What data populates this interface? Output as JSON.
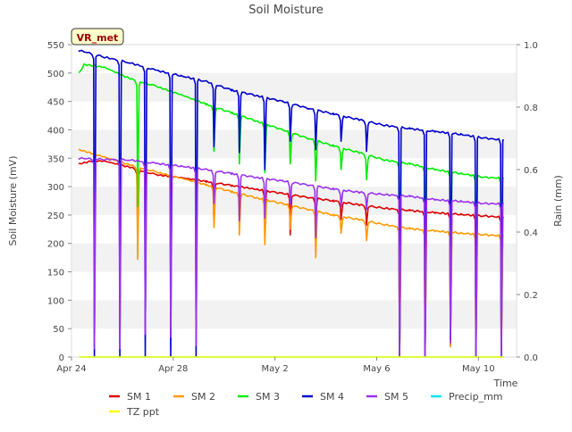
{
  "chart_data": {
    "type": "line",
    "title": "Soil Moisture",
    "station_tag": "VR_met",
    "xlabel": "Time",
    "ylabel_left": "Soil Moisture (mV)",
    "ylabel_right": "Rain (mm)",
    "x_unit": "days since Apr 24",
    "xlim": [
      0,
      17.5
    ],
    "ylim_left": [
      0,
      550
    ],
    "ylim_right": [
      0.0,
      1.0
    ],
    "x_ticks": [
      {
        "x": 0,
        "label": "Apr 24"
      },
      {
        "x": 4,
        "label": "Apr 28"
      },
      {
        "x": 8,
        "label": "May 2"
      },
      {
        "x": 12,
        "label": "May 6"
      },
      {
        "x": 16,
        "label": "May 10"
      }
    ],
    "y_ticks_left": [
      0,
      50,
      100,
      150,
      200,
      250,
      300,
      350,
      400,
      450,
      500,
      550
    ],
    "y_ticks_right": [
      "0.0",
      "0.2",
      "0.4",
      "0.6",
      "0.8",
      "1.0"
    ],
    "grid": "horizontal bands",
    "legend_position": "bottom",
    "cycle_starts": [
      0.3,
      1.3,
      2.3,
      3.3,
      4.3,
      5.3,
      6.3,
      7.3,
      8.3,
      9.3,
      10.3,
      11.3,
      12.3,
      13.3,
      14.3,
      15.3,
      16.3
    ],
    "series": [
      {
        "name": "SM 1",
        "color": "#dd0000",
        "points": [
          [
            0.3,
            340
          ],
          [
            0.8,
            345
          ],
          [
            1.3,
            345
          ],
          [
            2.3,
            334
          ],
          [
            3.3,
            321
          ],
          [
            4.3,
            316
          ],
          [
            5.3,
            309
          ],
          [
            6.3,
            302
          ],
          [
            7.3,
            295
          ],
          [
            8.3,
            288
          ],
          [
            9.3,
            281
          ],
          [
            10.3,
            275
          ],
          [
            11.3,
            268
          ],
          [
            12.3,
            262
          ],
          [
            13.3,
            258
          ],
          [
            14.3,
            254
          ],
          [
            15.3,
            251
          ],
          [
            16.3,
            248
          ],
          [
            17.0,
            246
          ]
        ],
        "dips": [
          [
            2.6,
            220
          ],
          [
            5.6,
            235
          ],
          [
            7.6,
            232
          ],
          [
            8.6,
            215
          ],
          [
            9.6,
            248
          ],
          [
            10.6,
            242
          ],
          [
            11.6,
            232
          ],
          [
            12.9,
            0
          ],
          [
            13.9,
            0
          ],
          [
            14.9,
            20
          ],
          [
            15.9,
            0
          ],
          [
            16.9,
            0
          ]
        ]
      },
      {
        "name": "SM 2",
        "color": "#ff9900",
        "points": [
          [
            0.3,
            365
          ],
          [
            1.3,
            352
          ],
          [
            2.3,
            338
          ],
          [
            3.3,
            326
          ],
          [
            4.3,
            315
          ],
          [
            5.3,
            303
          ],
          [
            6.3,
            291
          ],
          [
            7.3,
            280
          ],
          [
            8.3,
            270
          ],
          [
            9.3,
            260
          ],
          [
            10.3,
            250
          ],
          [
            11.3,
            242
          ],
          [
            12.3,
            233
          ],
          [
            13.3,
            226
          ],
          [
            14.3,
            222
          ],
          [
            15.3,
            218
          ],
          [
            16.3,
            215
          ],
          [
            17.0,
            213
          ]
        ],
        "dips": [
          [
            2.6,
            172
          ],
          [
            5.6,
            228
          ],
          [
            6.6,
            215
          ],
          [
            7.6,
            198
          ],
          [
            8.6,
            225
          ],
          [
            9.6,
            175
          ],
          [
            10.6,
            218
          ],
          [
            11.6,
            205
          ],
          [
            12.9,
            0
          ],
          [
            13.9,
            0
          ],
          [
            14.9,
            18
          ],
          [
            15.9,
            0
          ],
          [
            16.9,
            0
          ]
        ]
      },
      {
        "name": "SM 3",
        "color": "#00ee00",
        "points": [
          [
            0.3,
            500
          ],
          [
            0.5,
            515
          ],
          [
            1.3,
            510
          ],
          [
            2.3,
            490
          ],
          [
            3.3,
            477
          ],
          [
            4.3,
            462
          ],
          [
            5.3,
            445
          ],
          [
            6.3,
            430
          ],
          [
            7.3,
            415
          ],
          [
            8.3,
            400
          ],
          [
            9.3,
            385
          ],
          [
            10.3,
            372
          ],
          [
            11.3,
            360
          ],
          [
            12.3,
            347
          ],
          [
            13.3,
            340
          ],
          [
            14.3,
            330
          ],
          [
            15.3,
            323
          ],
          [
            16.3,
            316
          ],
          [
            17.0,
            315
          ]
        ],
        "dips": [
          [
            2.6,
            265
          ],
          [
            5.6,
            362
          ],
          [
            6.6,
            340
          ],
          [
            7.6,
            325
          ],
          [
            8.6,
            340
          ],
          [
            9.6,
            310
          ],
          [
            10.6,
            330
          ],
          [
            11.6,
            312
          ],
          [
            12.9,
            0
          ],
          [
            13.9,
            0
          ],
          [
            14.9,
            30
          ],
          [
            15.9,
            0
          ],
          [
            16.9,
            0
          ]
        ]
      },
      {
        "name": "SM 4",
        "color": "#0000cc",
        "points": [
          [
            0.3,
            540
          ],
          [
            1.3,
            528
          ],
          [
            2.3,
            518
          ],
          [
            3.3,
            505
          ],
          [
            4.3,
            495
          ],
          [
            5.3,
            485
          ],
          [
            6.3,
            470
          ],
          [
            7.3,
            460
          ],
          [
            8.3,
            450
          ],
          [
            9.3,
            438
          ],
          [
            10.3,
            428
          ],
          [
            11.3,
            418
          ],
          [
            12.3,
            408
          ],
          [
            13.3,
            402
          ],
          [
            14.3,
            397
          ],
          [
            15.3,
            392
          ],
          [
            16.3,
            385
          ],
          [
            17.0,
            382
          ]
        ],
        "dips": [
          [
            0.9,
            0
          ],
          [
            1.9,
            0
          ],
          [
            2.9,
            0
          ],
          [
            3.9,
            0
          ],
          [
            4.9,
            0
          ],
          [
            5.6,
            370
          ],
          [
            6.6,
            360
          ],
          [
            7.6,
            330
          ],
          [
            8.6,
            380
          ],
          [
            9.6,
            365
          ],
          [
            10.6,
            380
          ],
          [
            11.6,
            362
          ],
          [
            12.9,
            0
          ],
          [
            13.9,
            0
          ],
          [
            14.9,
            30
          ],
          [
            15.9,
            0
          ],
          [
            16.9,
            0
          ]
        ]
      },
      {
        "name": "SM 5",
        "color": "#9933ee",
        "points": [
          [
            0.3,
            350
          ],
          [
            1.3,
            348
          ],
          [
            2.3,
            347
          ],
          [
            3.3,
            341
          ],
          [
            4.3,
            336
          ],
          [
            5.3,
            330
          ],
          [
            6.3,
            323
          ],
          [
            7.3,
            316
          ],
          [
            8.3,
            310
          ],
          [
            9.3,
            303
          ],
          [
            10.3,
            296
          ],
          [
            11.3,
            290
          ],
          [
            12.3,
            286
          ],
          [
            13.3,
            283
          ],
          [
            14.3,
            277
          ],
          [
            15.3,
            274
          ],
          [
            16.3,
            270
          ],
          [
            17.0,
            270
          ]
        ],
        "dips": [
          [
            0.9,
            15
          ],
          [
            1.9,
            15
          ],
          [
            2.9,
            40
          ],
          [
            3.9,
            35
          ],
          [
            4.9,
            20
          ],
          [
            5.6,
            270
          ],
          [
            6.6,
            240
          ],
          [
            7.6,
            245
          ],
          [
            8.6,
            270
          ],
          [
            9.6,
            210
          ],
          [
            10.6,
            265
          ],
          [
            11.6,
            260
          ],
          [
            12.9,
            0
          ],
          [
            13.9,
            0
          ],
          [
            14.9,
            25
          ],
          [
            15.9,
            0
          ],
          [
            16.9,
            0
          ]
        ]
      },
      {
        "name": "Precip_mm",
        "color": "#00e5ee",
        "axis": "right",
        "points": [
          [
            0.3,
            0
          ],
          [
            17.0,
            0
          ]
        ],
        "dips": []
      },
      {
        "name": "TZ ppt",
        "color": "#ffff00",
        "points": [
          [
            0.3,
            0
          ],
          [
            17.0,
            0
          ]
        ],
        "dips": []
      }
    ]
  }
}
